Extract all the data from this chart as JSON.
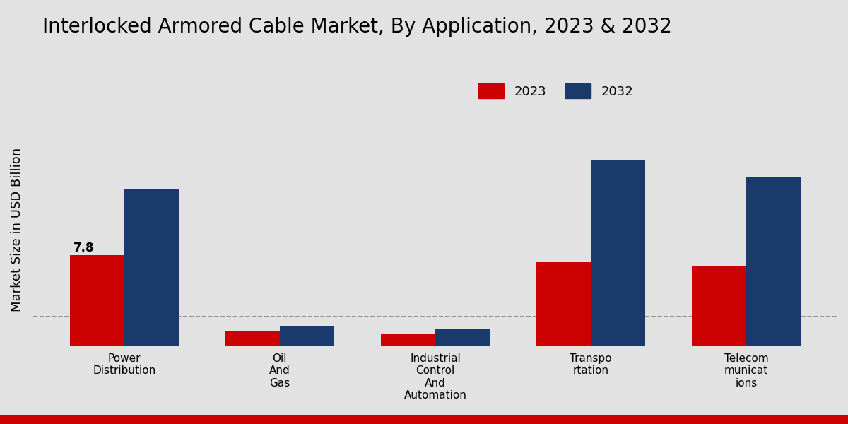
{
  "title": "Interlocked Armored Cable Market, By Application, 2023 & 2032",
  "ylabel": "Market Size in USD Billion",
  "categories": [
    "Power\nDistribution",
    "Oil\nAnd\nGas",
    "Industrial\nControl\nAnd\nAutomation",
    "Transpo\nrtation",
    "Telecom\nmunicat\nions"
  ],
  "values_2023": [
    7.8,
    1.2,
    1.0,
    7.2,
    6.8
  ],
  "values_2032": [
    13.5,
    1.7,
    1.4,
    16.0,
    14.5
  ],
  "color_2023": "#cc0000",
  "color_2032": "#1a3a6b",
  "background_color": "#e2e2e2",
  "annotation_label": "7.8",
  "dashed_line_y": 2.5,
  "ylim": [
    0,
    20
  ],
  "bar_width": 0.35,
  "legend_labels": [
    "2023",
    "2032"
  ],
  "title_fontsize": 20,
  "axis_label_fontsize": 13,
  "tick_fontsize": 11,
  "legend_fontsize": 13
}
